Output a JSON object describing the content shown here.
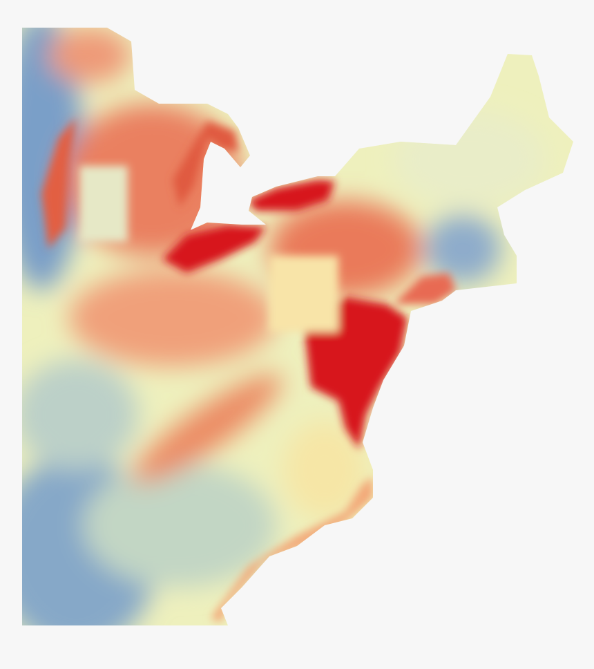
{
  "map": {
    "region": "",
    "colors": {
      "background": "#f7f7f7",
      "low": "#6f97c4",
      "mid_low": "#c9dcc0",
      "mid": "#f7f3b8",
      "mid_high": "#f2a070",
      "high": "#d7191c"
    }
  }
}
